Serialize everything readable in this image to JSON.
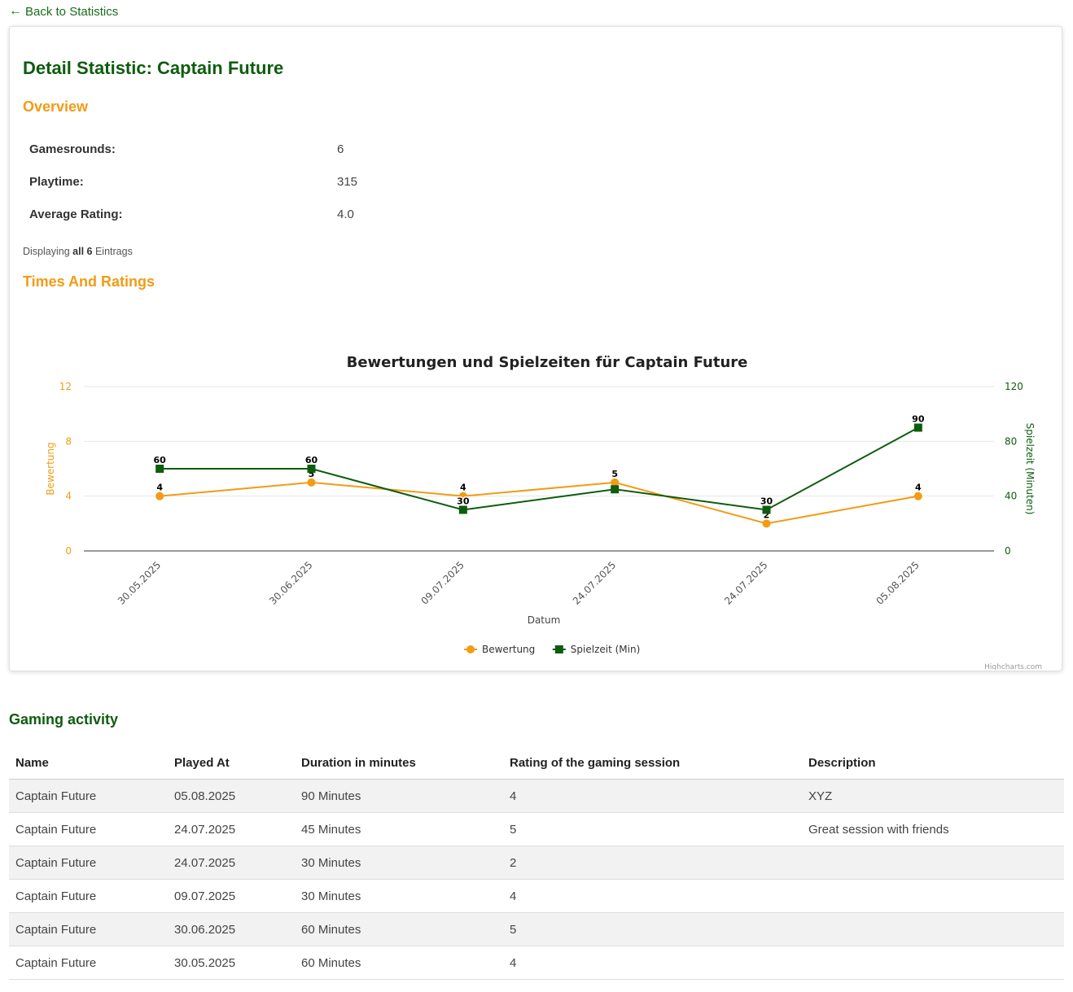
{
  "nav": {
    "back_arrow": "←",
    "back_label": "Back to Statistics"
  },
  "page": {
    "title": "Detail Statistic: Captain Future"
  },
  "overview": {
    "heading": "Overview",
    "rows": [
      {
        "label": "Gamesrounds:",
        "value": "6"
      },
      {
        "label": "Playtime:",
        "value": "315"
      },
      {
        "label": "Average Rating:",
        "value": "4.0"
      }
    ],
    "display_prefix": "Displaying",
    "display_bold": "all 6",
    "display_suffix": "Eintrags"
  },
  "times_heading": "Times And Ratings",
  "chart_data": {
    "type": "line",
    "title": "Bewertungen und Spielzeiten für Captain Future",
    "xlabel": "Datum",
    "categories": [
      "30.05.2025",
      "30.06.2025",
      "09.07.2025",
      "24.07.2025",
      "24.07.2025",
      "05.08.2025"
    ],
    "y_left": {
      "label": "Bewertung",
      "ticks": [
        0,
        4,
        8,
        12
      ],
      "range": [
        0,
        12
      ],
      "color": "#f39b14"
    },
    "y_right": {
      "label": "Spielzeit (Minuten)",
      "ticks": [
        0,
        40,
        80,
        120
      ],
      "range": [
        0,
        120
      ],
      "color": "#0e5c0e"
    },
    "series": [
      {
        "name": "Bewertung",
        "axis": "left",
        "marker": "circle",
        "color": "#f39b14",
        "values": [
          4,
          5,
          4,
          5,
          2,
          4
        ]
      },
      {
        "name": "Spielzeit (Min)",
        "axis": "right",
        "marker": "square",
        "color": "#0e5c0e",
        "values": [
          60,
          60,
          30,
          45,
          30,
          90
        ],
        "labels": [
          "60",
          "60",
          "30",
          "",
          "30",
          "90"
        ]
      }
    ],
    "legend_position": "bottom-center",
    "credits": "Highcharts.com",
    "grid": true
  },
  "activity": {
    "heading": "Gaming activity",
    "columns": [
      "Name",
      "Played At",
      "Duration in minutes",
      "Rating of the gaming session",
      "Description"
    ],
    "rows": [
      [
        "Captain Future",
        "05.08.2025",
        "90 Minutes",
        "4",
        "XYZ"
      ],
      [
        "Captain Future",
        "24.07.2025",
        "45 Minutes",
        "5",
        "Great session with friends"
      ],
      [
        "Captain Future",
        "24.07.2025",
        "30 Minutes",
        "2",
        ""
      ],
      [
        "Captain Future",
        "09.07.2025",
        "30 Minutes",
        "4",
        ""
      ],
      [
        "Captain Future",
        "30.06.2025",
        "60 Minutes",
        "5",
        ""
      ],
      [
        "Captain Future",
        "30.05.2025",
        "60 Minutes",
        "4",
        ""
      ]
    ]
  }
}
